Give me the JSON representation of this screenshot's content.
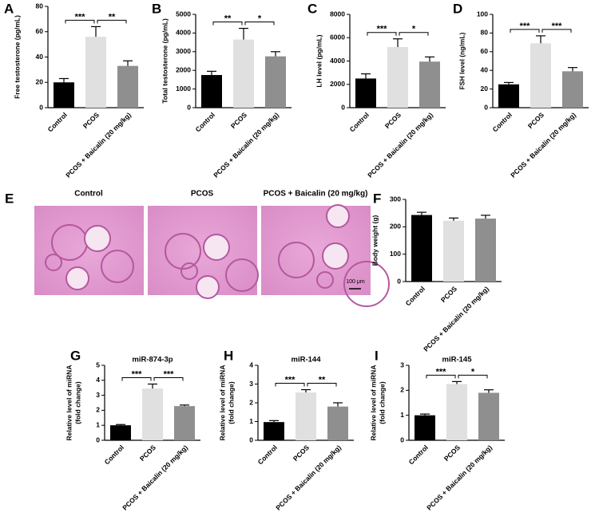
{
  "chart_data": [
    {
      "type": "bar",
      "panel": "A",
      "ylabel": "Free testosterone (pg/mL)",
      "categories": [
        "Control",
        "PCOS",
        "PCOS + Baicalin (20 mg/kg)"
      ],
      "values": [
        20,
        56,
        33
      ],
      "errors": [
        3,
        8,
        4
      ],
      "colors": [
        "#000000",
        "#e0e0e0",
        "#8f8f8f"
      ],
      "ylim": [
        0,
        80
      ],
      "yticks": [
        0,
        20,
        40,
        60,
        80
      ],
      "significance": [
        {
          "label": "***",
          "between": [
            0,
            1
          ]
        },
        {
          "label": "**",
          "between": [
            1,
            2
          ]
        }
      ]
    },
    {
      "type": "bar",
      "panel": "B",
      "ylabel": "Total testosterone (pg/mL)",
      "categories": [
        "Control",
        "PCOS",
        "PCOS + Baicalin (20 mg/kg)"
      ],
      "values": [
        1750,
        3650,
        2750
      ],
      "errors": [
        200,
        600,
        250
      ],
      "colors": [
        "#000000",
        "#e0e0e0",
        "#8f8f8f"
      ],
      "ylim": [
        0,
        5000
      ],
      "yticks": [
        0,
        1000,
        2000,
        3000,
        4000,
        5000
      ],
      "significance": [
        {
          "label": "**",
          "between": [
            0,
            1
          ]
        },
        {
          "label": "*",
          "between": [
            1,
            2
          ]
        }
      ]
    },
    {
      "type": "bar",
      "panel": "C",
      "ylabel": "LH level (pg/mL)",
      "categories": [
        "Control",
        "PCOS",
        "PCOS + Baicalin (20 mg/kg)"
      ],
      "values": [
        2500,
        5200,
        3950
      ],
      "errors": [
        400,
        700,
        400
      ],
      "colors": [
        "#000000",
        "#e0e0e0",
        "#8f8f8f"
      ],
      "ylim": [
        0,
        8000
      ],
      "yticks": [
        0,
        2000,
        4000,
        6000,
        8000
      ],
      "significance": [
        {
          "label": "***",
          "between": [
            0,
            1
          ]
        },
        {
          "label": "*",
          "between": [
            1,
            2
          ]
        }
      ]
    },
    {
      "type": "bar",
      "panel": "D",
      "ylabel": "FSH level (ng/mL)",
      "categories": [
        "Control",
        "PCOS",
        "PCOS + Baicalin (20 mg/kg)"
      ],
      "values": [
        25,
        69,
        39
      ],
      "errors": [
        2,
        8,
        4
      ],
      "colors": [
        "#000000",
        "#e0e0e0",
        "#8f8f8f"
      ],
      "ylim": [
        0,
        100
      ],
      "yticks": [
        0,
        20,
        40,
        60,
        80,
        100
      ],
      "significance": [
        {
          "label": "***",
          "between": [
            0,
            1
          ]
        },
        {
          "label": "***",
          "between": [
            1,
            2
          ]
        }
      ]
    },
    {
      "type": "bar",
      "panel": "F",
      "ylabel": "Body weight (g)",
      "categories": [
        "Control",
        "PCOS",
        "PCOS + Baicalin (20 mg/kg)"
      ],
      "values": [
        243,
        222,
        230
      ],
      "errors": [
        10,
        10,
        12
      ],
      "colors": [
        "#000000",
        "#e0e0e0",
        "#8f8f8f"
      ],
      "ylim": [
        0,
        300
      ],
      "yticks": [
        0,
        100,
        200,
        300
      ],
      "significance": []
    },
    {
      "type": "bar",
      "panel": "G",
      "title": "miR-874-3p",
      "ylabel": [
        "Relative level of miRNA",
        "(fold change)"
      ],
      "categories": [
        "Control",
        "PCOS",
        "PCOS + Baicalin (20 mg/kg)"
      ],
      "values": [
        1.0,
        3.45,
        2.28
      ],
      "errors": [
        0.05,
        0.3,
        0.07
      ],
      "colors": [
        "#000000",
        "#e0e0e0",
        "#8f8f8f"
      ],
      "ylim": [
        0,
        5
      ],
      "yticks": [
        0,
        1,
        2,
        3,
        4,
        5
      ],
      "significance": [
        {
          "label": "***",
          "between": [
            0,
            1
          ]
        },
        {
          "label": "***",
          "between": [
            1,
            2
          ]
        }
      ]
    },
    {
      "type": "bar",
      "panel": "H",
      "title": "miR-144",
      "ylabel": [
        "Relative level of miRNA",
        "(fold change)"
      ],
      "categories": [
        "Control",
        "PCOS",
        "PCOS + Baicalin (20 mg/kg)"
      ],
      "values": [
        0.97,
        2.55,
        1.8
      ],
      "errors": [
        0.08,
        0.15,
        0.2
      ],
      "colors": [
        "#000000",
        "#e0e0e0",
        "#8f8f8f"
      ],
      "ylim": [
        0,
        4
      ],
      "yticks": [
        0,
        1,
        2,
        3,
        4
      ],
      "significance": [
        {
          "label": "***",
          "between": [
            0,
            1
          ]
        },
        {
          "label": "**",
          "between": [
            1,
            2
          ]
        }
      ]
    },
    {
      "type": "bar",
      "panel": "I",
      "title": "miR-145",
      "ylabel": [
        "Relative level of miRNA",
        "(fold change)"
      ],
      "categories": [
        "Control",
        "PCOS",
        "PCOS + Baicalin (20 mg/kg)"
      ],
      "values": [
        1.0,
        2.25,
        1.9
      ],
      "errors": [
        0.05,
        0.1,
        0.12
      ],
      "colors": [
        "#000000",
        "#e0e0e0",
        "#8f8f8f"
      ],
      "ylim": [
        0,
        3
      ],
      "yticks": [
        0,
        1,
        2,
        3
      ],
      "significance": [
        {
          "label": "***",
          "between": [
            0,
            1
          ]
        },
        {
          "label": "*",
          "between": [
            1,
            2
          ]
        }
      ]
    }
  ],
  "histology": {
    "panel": "E",
    "images": [
      "Control",
      "PCOS",
      "PCOS + Baicalin (20 mg/kg)"
    ],
    "scale_bar": "100 μm"
  }
}
